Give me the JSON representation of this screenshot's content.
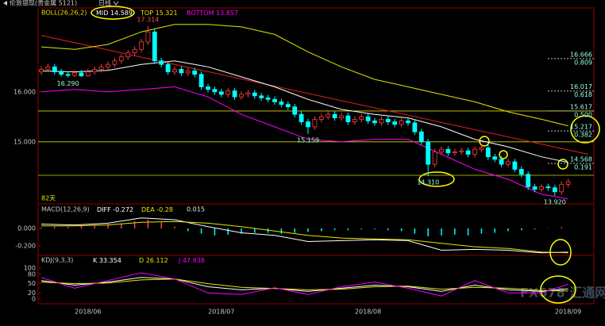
{
  "chart_data": [
    {
      "type": "candlestick",
      "header": "伦敦银现(贵金属 5121)",
      "period": "日线",
      "indicator": "BOLL(26,26,2)",
      "days_label": "82天",
      "watermark": "FX678 汇通网",
      "up_color": "#ff3c3c",
      "down_color": "#00ffff",
      "categories": [
        null,
        null,
        null,
        null,
        null,
        null,
        null,
        "2018/06",
        null,
        null,
        null,
        null,
        null,
        null,
        null,
        null,
        null,
        null,
        null,
        null,
        null,
        null,
        null,
        null,
        null,
        null,
        null,
        "2018/07",
        null,
        null,
        null,
        null,
        null,
        null,
        null,
        null,
        null,
        null,
        null,
        null,
        null,
        null,
        null,
        null,
        null,
        null,
        null,
        null,
        null,
        "2018/08",
        null,
        null,
        null,
        null,
        null,
        null,
        null,
        null,
        null,
        null,
        null,
        null,
        null,
        null,
        null,
        null,
        null,
        null,
        null,
        null,
        null,
        null,
        null,
        null,
        null,
        null,
        null,
        null,
        null,
        "2018/09"
      ],
      "open": [
        16.4,
        16.45,
        16.5,
        16.4,
        16.35,
        16.33,
        16.38,
        16.32,
        16.4,
        16.45,
        16.5,
        16.55,
        16.62,
        16.7,
        16.78,
        16.85,
        17.0,
        17.2,
        16.62,
        16.55,
        16.4,
        16.45,
        16.38,
        16.42,
        16.35,
        16.1,
        16.05,
        16.0,
        15.95,
        16.02,
        15.9,
        15.95,
        15.98,
        15.92,
        15.88,
        15.85,
        15.8,
        15.75,
        15.7,
        15.55,
        15.4,
        15.3,
        15.45,
        15.5,
        15.55,
        15.48,
        15.52,
        15.4,
        15.45,
        15.5,
        15.42,
        15.38,
        15.45,
        15.4,
        15.35,
        15.42,
        15.38,
        15.2,
        15.0,
        14.55,
        14.8,
        14.85,
        14.78,
        14.8,
        14.82,
        14.75,
        14.85,
        14.88,
        14.7,
        14.65,
        14.55,
        14.6,
        14.45,
        14.35,
        14.1,
        14.05,
        14.1,
        14.08,
        14.0,
        14.15
      ],
      "high": [
        16.51,
        16.56,
        16.56,
        16.46,
        16.41,
        16.44,
        16.44,
        16.46,
        16.51,
        16.56,
        16.61,
        16.68,
        16.76,
        16.84,
        16.91,
        17.06,
        17.314,
        17.26,
        16.68,
        16.61,
        16.51,
        16.51,
        16.48,
        16.48,
        16.41,
        16.16,
        16.11,
        16.06,
        16.08,
        16.08,
        16.01,
        16.04,
        16.04,
        15.98,
        15.94,
        15.91,
        15.86,
        15.81,
        15.76,
        15.61,
        15.46,
        15.51,
        15.56,
        15.61,
        15.61,
        15.58,
        15.58,
        15.51,
        15.56,
        15.56,
        15.48,
        15.51,
        15.51,
        15.46,
        15.48,
        15.48,
        15.44,
        15.26,
        15.06,
        14.86,
        14.91,
        14.91,
        14.86,
        14.88,
        14.88,
        14.91,
        14.94,
        14.94,
        14.76,
        14.71,
        14.66,
        14.66,
        14.51,
        14.41,
        14.16,
        14.16,
        14.16,
        14.14,
        14.21,
        14.26
      ],
      "low": [
        16.34,
        16.39,
        16.34,
        16.31,
        16.29,
        16.3,
        16.3,
        16.3,
        16.34,
        16.39,
        16.44,
        16.49,
        16.56,
        16.64,
        16.72,
        16.79,
        16.94,
        16.56,
        16.49,
        16.34,
        16.34,
        16.32,
        16.32,
        16.29,
        16.04,
        15.99,
        15.94,
        15.89,
        15.89,
        15.84,
        15.84,
        15.89,
        15.86,
        15.82,
        15.79,
        15.74,
        15.69,
        15.64,
        15.49,
        15.34,
        15.159,
        15.24,
        15.39,
        15.44,
        15.42,
        15.42,
        15.34,
        15.34,
        15.39,
        15.36,
        15.32,
        15.32,
        15.34,
        15.29,
        15.29,
        15.32,
        15.14,
        14.94,
        14.31,
        14.49,
        14.74,
        14.72,
        14.72,
        14.74,
        14.69,
        14.69,
        14.79,
        14.64,
        14.59,
        14.49,
        14.49,
        14.39,
        14.29,
        14.04,
        13.99,
        13.99,
        14.02,
        13.92,
        13.94,
        14.09
      ],
      "close": [
        16.45,
        16.5,
        16.4,
        16.35,
        16.33,
        16.38,
        16.32,
        16.4,
        16.45,
        16.5,
        16.55,
        16.62,
        16.7,
        16.78,
        16.85,
        17.0,
        17.2,
        16.62,
        16.55,
        16.4,
        16.45,
        16.38,
        16.42,
        16.35,
        16.1,
        16.05,
        16.0,
        15.95,
        16.02,
        15.9,
        15.95,
        15.98,
        15.92,
        15.88,
        15.85,
        15.8,
        15.75,
        15.7,
        15.55,
        15.4,
        15.3,
        15.45,
        15.5,
        15.55,
        15.48,
        15.52,
        15.4,
        15.45,
        15.5,
        15.42,
        15.38,
        15.45,
        15.4,
        15.35,
        15.42,
        15.38,
        15.2,
        15.0,
        14.55,
        14.8,
        14.85,
        14.78,
        14.8,
        14.82,
        14.75,
        14.85,
        14.88,
        14.7,
        14.65,
        14.55,
        14.6,
        14.45,
        14.35,
        14.1,
        14.05,
        14.1,
        14.08,
        14.0,
        14.15,
        14.2
      ],
      "high_labels": [
        null,
        null,
        null,
        null,
        null,
        null,
        null,
        null,
        null,
        null,
        null,
        null,
        null,
        null,
        null,
        null,
        "17.314",
        null,
        null,
        null,
        null,
        null,
        null,
        null,
        null,
        null,
        null,
        null,
        null,
        null,
        null,
        null,
        null,
        null,
        null,
        null,
        null,
        null,
        null,
        null,
        null,
        null,
        null,
        null,
        null,
        null,
        null,
        null,
        null,
        null,
        null,
        null,
        null,
        null,
        null,
        null,
        null,
        null,
        null,
        null,
        null,
        null,
        null,
        null,
        null,
        null,
        null,
        null,
        null,
        null,
        null,
        null,
        null,
        null,
        null,
        null,
        null,
        null,
        null,
        null
      ],
      "low_labels": [
        null,
        null,
        null,
        null,
        "16.290",
        null,
        null,
        null,
        null,
        null,
        null,
        null,
        null,
        null,
        null,
        null,
        null,
        null,
        null,
        null,
        null,
        null,
        null,
        null,
        null,
        null,
        null,
        null,
        null,
        null,
        null,
        null,
        null,
        null,
        null,
        null,
        null,
        null,
        null,
        null,
        "15.159",
        null,
        null,
        null,
        null,
        null,
        null,
        null,
        null,
        null,
        null,
        null,
        null,
        null,
        null,
        null,
        null,
        null,
        "14.310",
        null,
        null,
        null,
        null,
        null,
        null,
        null,
        null,
        null,
        null,
        null,
        null,
        null,
        null,
        null,
        null,
        null,
        null,
        "13.920",
        null,
        null
      ],
      "ylim": [
        13.79,
        17.68
      ],
      "yticks": [
        {
          "value": 16,
          "label": "16.000"
        },
        {
          "value": 15,
          "label": "15.000"
        }
      ],
      "series": [
        {
          "name": "MID",
          "color": "#ffffff",
          "x": [
            0,
            5,
            10,
            15,
            20,
            25,
            30,
            35,
            40,
            45,
            50,
            55,
            60,
            65,
            70,
            75,
            79
          ],
          "values": [
            16.42,
            16.4,
            16.43,
            16.55,
            16.62,
            16.5,
            16.3,
            16.1,
            15.85,
            15.65,
            15.55,
            15.48,
            15.3,
            15.05,
            14.9,
            14.7,
            14.589
          ]
        },
        {
          "name": "TOP",
          "color": "#e6e600",
          "x": [
            0,
            5,
            10,
            15,
            20,
            25,
            30,
            35,
            40,
            45,
            50,
            55,
            60,
            65,
            70,
            75,
            79
          ],
          "values": [
            16.9,
            16.85,
            16.95,
            17.2,
            17.35,
            17.35,
            17.3,
            17.15,
            16.8,
            16.5,
            16.25,
            16.1,
            15.95,
            15.8,
            15.6,
            15.45,
            15.321
          ]
        },
        {
          "name": "BOTTOM",
          "color": "#ff00ff",
          "x": [
            0,
            5,
            10,
            15,
            20,
            25,
            30,
            35,
            40,
            45,
            50,
            55,
            60,
            65,
            70,
            75,
            79
          ],
          "values": [
            16.0,
            16.05,
            16.0,
            16.05,
            16.1,
            15.9,
            15.55,
            15.3,
            15.05,
            15.0,
            15.05,
            15.05,
            14.75,
            14.45,
            14.25,
            13.95,
            13.857
          ]
        }
      ],
      "trendline": {
        "color": "#e02020",
        "x": [
          0,
          82
        ],
        "values": [
          17.13,
          14.75
        ]
      },
      "hlines": {
        "color": "#d8d800",
        "values": [
          15.617,
          15.0,
          14.33
        ]
      },
      "levels": [
        {
          "price": {
            "value": 16.666,
            "label": "16.666"
          },
          "ratio": "0.809"
        },
        {
          "price": {
            "value": 16.017,
            "label": "16.017"
          },
          "ratio": "0.618"
        },
        {
          "price": {
            "value": 15.617,
            "label": "15.617"
          },
          "ratio": "0.500"
        },
        {
          "price": {
            "value": 15.217,
            "label": "15.217"
          },
          "ratio": "0.382"
        },
        {
          "price": {
            "value": 14.568,
            "label": "14.568"
          },
          "ratio": "0.191"
        }
      ]
    },
    {
      "type": "macd",
      "indicator": "MACD(12,26,9)",
      "pos_color": "#ff3c3c",
      "neg_color": "#00ffff",
      "ylim": [
        -0.309,
        0.273
      ],
      "yticks": [
        {
          "value": 0,
          "label": "0.000"
        },
        {
          "value": -0.2,
          "label": "-0.200"
        }
      ],
      "x": [
        0,
        2,
        4,
        6,
        8,
        10,
        12,
        14,
        16,
        18,
        20,
        22,
        24,
        26,
        28,
        30,
        32,
        34,
        36,
        38,
        40,
        42,
        44,
        46,
        48,
        50,
        52,
        54,
        56,
        58,
        60,
        62,
        64,
        66,
        68,
        70,
        72,
        74,
        76,
        78
      ],
      "values": [
        0.01,
        0.02,
        0.02,
        0.03,
        0.04,
        0.05,
        0.06,
        0.08,
        0.1,
        0.07,
        0.02,
        -0.03,
        -0.06,
        -0.08,
        -0.07,
        -0.06,
        -0.05,
        -0.05,
        -0.06,
        -0.05,
        -0.04,
        -0.03,
        -0.02,
        -0.02,
        -0.01,
        -0.01,
        -0.02,
        -0.03,
        -0.06,
        -0.09,
        -0.08,
        -0.07,
        -0.08,
        -0.06,
        -0.05,
        -0.03,
        -0.02,
        -0.01,
        0.005,
        0.015
      ],
      "series": [
        {
          "name": "DIFF",
          "color": "#ffffff",
          "x": [
            0,
            5,
            10,
            15,
            20,
            25,
            30,
            35,
            40,
            45,
            50,
            55,
            60,
            65,
            70,
            75,
            79
          ],
          "values": [
            0.05,
            0.04,
            0.06,
            0.12,
            0.1,
            0.02,
            -0.05,
            -0.08,
            -0.15,
            -0.14,
            -0.13,
            -0.14,
            -0.25,
            -0.24,
            -0.25,
            -0.28,
            -0.272
          ]
        },
        {
          "name": "DEA",
          "color": "#e6e600",
          "x": [
            0,
            5,
            10,
            15,
            20,
            25,
            30,
            35,
            40,
            45,
            50,
            55,
            60,
            65,
            70,
            75,
            79
          ],
          "values": [
            0.03,
            0.03,
            0.04,
            0.07,
            0.08,
            0.06,
            0.02,
            -0.03,
            -0.08,
            -0.11,
            -0.12,
            -0.13,
            -0.17,
            -0.21,
            -0.23,
            -0.27,
            -0.28
          ]
        }
      ]
    },
    {
      "type": "kdj",
      "indicator": "KDJ(9,3,3)",
      "ylim": [
        -15,
        141
      ],
      "yticks": [
        100,
        80,
        50,
        20,
        0
      ],
      "series": [
        {
          "name": "K",
          "color": "#ffffff",
          "x": [
            0,
            5,
            10,
            15,
            20,
            25,
            30,
            35,
            40,
            45,
            50,
            55,
            60,
            65,
            70,
            75,
            79
          ],
          "values": [
            60,
            45,
            55,
            70,
            65,
            40,
            30,
            35,
            25,
            35,
            45,
            40,
            25,
            45,
            30,
            25,
            33.354
          ]
        },
        {
          "name": "D",
          "color": "#e6e600",
          "x": [
            0,
            5,
            10,
            15,
            20,
            25,
            30,
            35,
            40,
            45,
            50,
            55,
            60,
            65,
            70,
            75,
            79
          ],
          "values": [
            55,
            50,
            52,
            62,
            65,
            50,
            38,
            34,
            30,
            32,
            40,
            42,
            32,
            38,
            35,
            28,
            26.112
          ]
        },
        {
          "name": "J",
          "color": "#ff00ff",
          "x": [
            0,
            5,
            10,
            15,
            20,
            25,
            30,
            35,
            40,
            45,
            50,
            55,
            60,
            65,
            70,
            75,
            79
          ],
          "values": [
            70,
            35,
            60,
            85,
            65,
            20,
            15,
            37,
            15,
            40,
            55,
            35,
            10,
            60,
            20,
            20,
            47.838
          ]
        }
      ]
    }
  ]
}
